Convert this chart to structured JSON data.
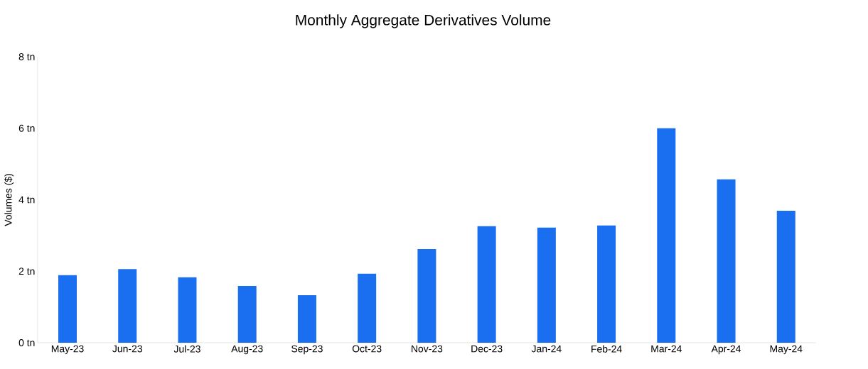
{
  "chart_data": {
    "type": "bar",
    "title": "Monthly Aggregate Derivatives Volume",
    "ylabel": "Volumes ($)",
    "categories": [
      "May-23",
      "Jun-23",
      "Jul-23",
      "Aug-23",
      "Sep-23",
      "Oct-23",
      "Nov-23",
      "Dec-23",
      "Jan-24",
      "Feb-24",
      "Mar-24",
      "Apr-24",
      "May-24"
    ],
    "values": [
      1.89,
      2.06,
      1.83,
      1.59,
      1.33,
      1.93,
      2.62,
      3.26,
      3.22,
      3.28,
      6.0,
      4.57,
      3.69
    ],
    "color": "#1a6ef0",
    "ylim": [
      0,
      8
    ],
    "yticks": [
      {
        "value": 0,
        "label": "0 tn"
      },
      {
        "value": 2,
        "label": "2 tn"
      },
      {
        "value": 4,
        "label": "4 tn"
      },
      {
        "value": 6,
        "label": "6 tn"
      },
      {
        "value": 8,
        "label": "8 tn"
      }
    ]
  }
}
